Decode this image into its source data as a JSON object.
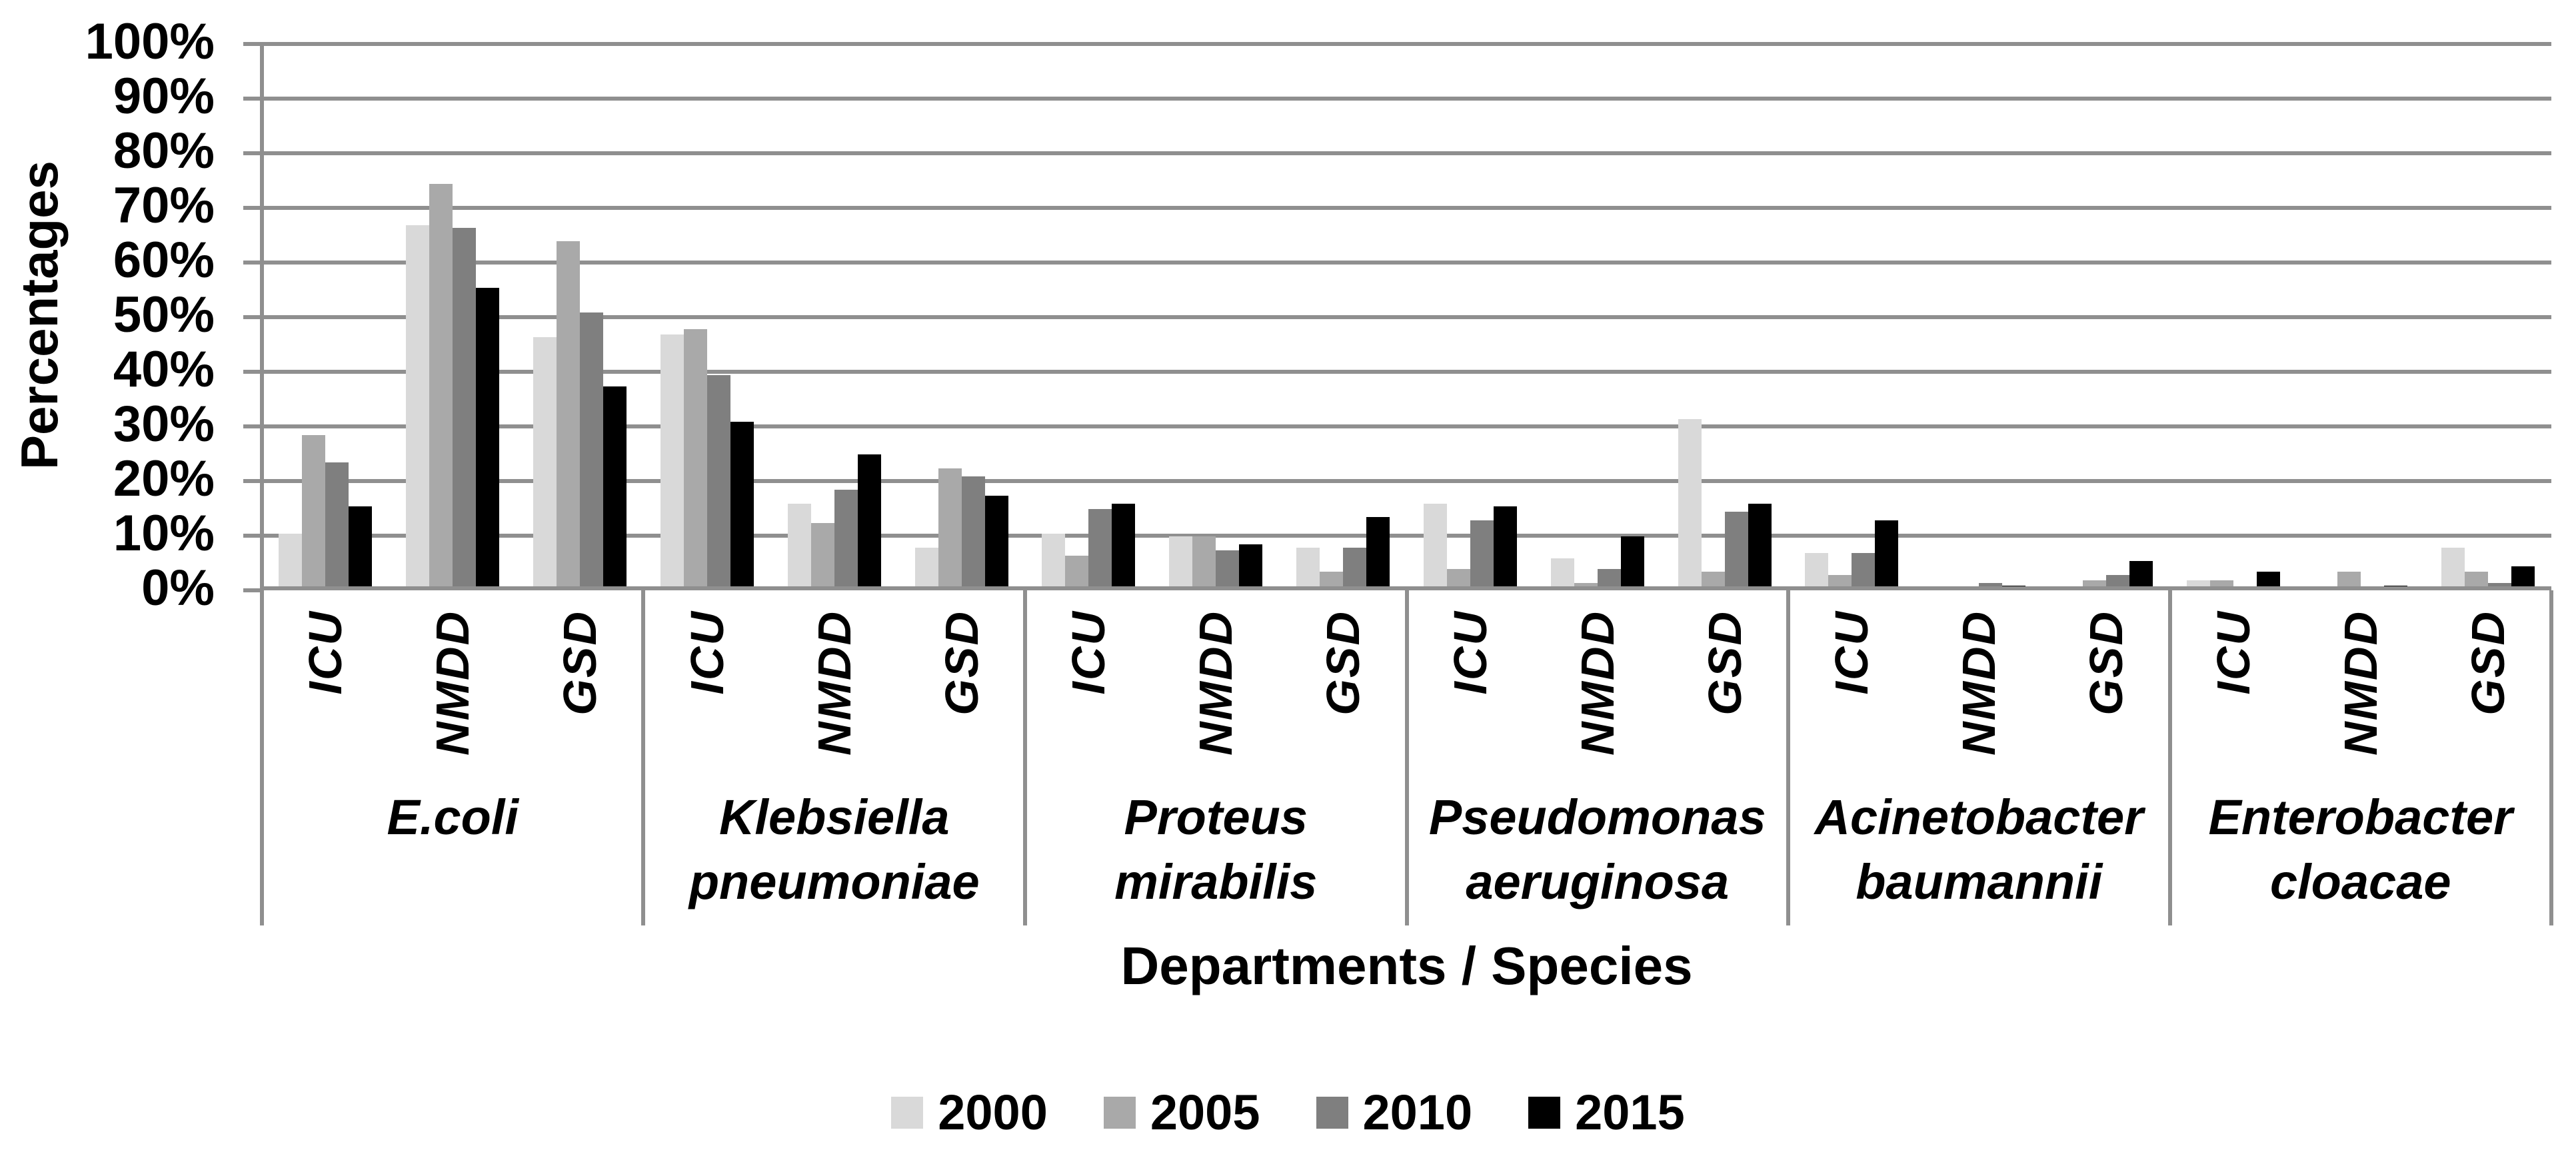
{
  "y_axis": {
    "title": "Percentages",
    "tick_labels": [
      "100%",
      "90%",
      "80%",
      "70%",
      "60%",
      "50%",
      "40%",
      "30%",
      "20%",
      "10%",
      "0%"
    ],
    "min": 0,
    "max": 100,
    "step": 10
  },
  "x_axis": {
    "title": "Departments / Species",
    "departments": [
      "ICU",
      "NMDD",
      "GSD"
    ],
    "species_lines": [
      [
        "E.coli"
      ],
      [
        "Klebsiella",
        "pneumoniae"
      ],
      [
        "Proteus mirabilis"
      ],
      [
        "Pseudomonas",
        "aeruginosa"
      ],
      [
        "Acinetobacter",
        "baumannii"
      ],
      [
        "Enterobacter",
        "cloacae"
      ]
    ]
  },
  "legend": {
    "position": "bottom",
    "labels": [
      "2000",
      "2005",
      "2010",
      "2015"
    ]
  },
  "colors": {
    "series_2000": "#d9d9d9",
    "series_2005": "#a9a9a9",
    "series_2010": "#7f7f7f",
    "series_2015": "#000000",
    "gridline": "#8f8f8f",
    "text": "#000000",
    "background": "#ffffff"
  },
  "chart_data": {
    "type": "bar",
    "title": "",
    "xlabel": "Departments / Species",
    "ylabel": "Percentages",
    "ylim": [
      0,
      100
    ],
    "grid": true,
    "legend_position": "bottom",
    "species": [
      "E.coli",
      "Klebsiella pneumoniae",
      "Proteus mirabilis",
      "Pseudomonas aeruginosa",
      "Acinetobacter baumannii",
      "Enterobacter cloacae"
    ],
    "departments": [
      "ICU",
      "NMDD",
      "GSD"
    ],
    "value_order": "for each species in order: ICU, NMDD, GSD",
    "categories": [
      "E.coli ICU",
      "E.coli NMDD",
      "E.coli GSD",
      "Klebsiella pneumoniae ICU",
      "Klebsiella pneumoniae NMDD",
      "Klebsiella pneumoniae GSD",
      "Proteus mirabilis ICU",
      "Proteus mirabilis NMDD",
      "Proteus mirabilis GSD",
      "Pseudomonas aeruginosa ICU",
      "Pseudomonas aeruginosa NMDD",
      "Pseudomonas aeruginosa GSD",
      "Acinetobacter baumannii ICU",
      "Acinetobacter baumannii NMDD",
      "Acinetobacter baumannii GSD",
      "Enterobacter cloacae ICU",
      "Enterobacter cloacae NMDD",
      "Enterobacter cloacae GSD"
    ],
    "series": [
      {
        "name": "2000",
        "color": "#d9d9d9",
        "values": [
          10,
          66.5,
          46,
          46.5,
          15.5,
          7.5,
          10,
          9.5,
          7.5,
          15.5,
          5.5,
          31,
          6.5,
          0,
          0,
          1.5,
          0,
          7.5
        ]
      },
      {
        "name": "2005",
        "color": "#a9a9a9",
        "values": [
          28,
          74,
          63.5,
          47.5,
          12,
          22,
          6,
          9.5,
          3,
          3.5,
          1,
          3,
          2.5,
          0,
          1.5,
          1.5,
          3,
          3
        ]
      },
      {
        "name": "2010",
        "color": "#7f7f7f",
        "values": [
          23,
          66,
          50.5,
          39,
          18,
          20.5,
          14.5,
          7,
          7.5,
          12.5,
          3.5,
          14,
          6.5,
          1,
          2.5,
          0,
          0,
          1
        ]
      },
      {
        "name": "2015",
        "color": "#000000",
        "values": [
          15,
          55,
          37,
          30.5,
          24.5,
          17,
          15.5,
          8,
          13,
          15,
          9.5,
          15.5,
          12.5,
          0.5,
          5,
          3,
          0.5,
          4
        ]
      }
    ]
  }
}
